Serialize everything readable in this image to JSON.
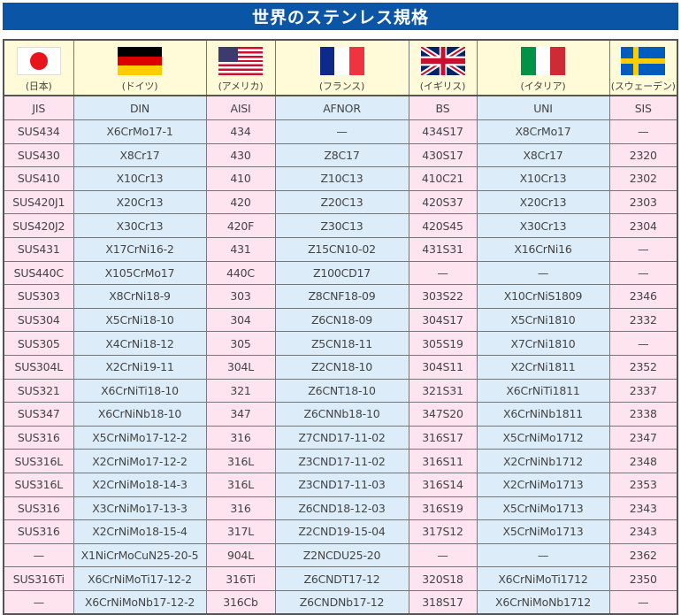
{
  "title": "世界のステンレス規格",
  "columns": [
    {
      "country": "(日本)",
      "flag": "japan-flag",
      "code": "JIS"
    },
    {
      "country": "(ドイツ)",
      "flag": "germany-flag",
      "code": "DIN"
    },
    {
      "country": "(アメリカ)",
      "flag": "usa-flag",
      "code": "AISI"
    },
    {
      "country": "(フランス)",
      "flag": "france-flag",
      "code": "AFNOR"
    },
    {
      "country": "(イギリス)",
      "flag": "uk-flag",
      "code": "BS"
    },
    {
      "country": "(イタリア)",
      "flag": "italy-flag",
      "code": "UNI"
    },
    {
      "country": "(スウェーデン)",
      "flag": "sweden-flag",
      "code": "SIS"
    }
  ],
  "rows": [
    [
      "SUS434",
      "X6CrMo17-1",
      "434",
      "—",
      "434S17",
      "X8CrMo17",
      "—"
    ],
    [
      "SUS430",
      "X8Cr17",
      "430",
      "Z8C17",
      "430S17",
      "X8Cr17",
      "2320"
    ],
    [
      "SUS410",
      "X10Cr13",
      "410",
      "Z10C13",
      "410C21",
      "X10Cr13",
      "2302"
    ],
    [
      "SUS420J1",
      "X20Cr13",
      "420",
      "Z20C13",
      "420S37",
      "X20Cr13",
      "2303"
    ],
    [
      "SUS420J2",
      "X30Cr13",
      "420F",
      "Z30C13",
      "420S45",
      "X30Cr13",
      "2304"
    ],
    [
      "SUS431",
      "X17CrNi16-2",
      "431",
      "Z15CN10-02",
      "431S31",
      "X16CrNi16",
      "—"
    ],
    [
      "SUS440C",
      "X105CrMo17",
      "440C",
      "Z100CD17",
      "—",
      "—",
      "—"
    ],
    [
      "SUS303",
      "X8CrNi18-9",
      "303",
      "Z8CNF18-09",
      "303S22",
      "X10CrNiS1809",
      "2346"
    ],
    [
      "SUS304",
      "X5CrNi18-10",
      "304",
      "Z6CN18-09",
      "304S17",
      "X5CrNi1810",
      "2332"
    ],
    [
      "SUS305",
      "X4CrNi18-12",
      "305",
      "Z5CN18-11",
      "305S19",
      "X7CrNi1810",
      "—"
    ],
    [
      "SUS304L",
      "X2CrNi19-11",
      "304L",
      "Z2CN18-10",
      "304S11",
      "X2CrNi1811",
      "2352"
    ],
    [
      "SUS321",
      "X6CrNiTi18-10",
      "321",
      "Z6CNT18-10",
      "321S31",
      "X6CrNiTi1811",
      "2337"
    ],
    [
      "SUS347",
      "X6CrNiNb18-10",
      "347",
      "Z6CNNb18-10",
      "347S20",
      "X6CrNiNb1811",
      "2338"
    ],
    [
      "SUS316",
      "X5CrNiMo17-12-2",
      "316",
      "Z7CND17-11-02",
      "316S17",
      "X5CrNiMo1712",
      "2347"
    ],
    [
      "SUS316L",
      "X2CrNiMo17-12-2",
      "316L",
      "Z3CND17-11-02",
      "316S11",
      "X2CrNiNb1712",
      "2348"
    ],
    [
      "SUS316L",
      "X2CrNiMo18-14-3",
      "316L",
      "Z3CND17-11-03",
      "316S14",
      "X2CrNiMo1713",
      "2353"
    ],
    [
      "SUS316",
      "X3CrNiMo17-13-3",
      "316",
      "Z6CND18-12-03",
      "316S19",
      "X5CrNiMo1713",
      "2343"
    ],
    [
      "SUS316",
      "X2CrNiMo18-15-4",
      "317L",
      "Z2CND19-15-04",
      "317S12",
      "X5CrNiMo1713",
      "2343"
    ],
    [
      "—",
      "X1NiCrMoCuN25-20-5",
      "904L",
      "Z2NCDU25-20",
      "—",
      "—",
      "2362"
    ],
    [
      "SUS316Ti",
      "X6CrNiMoTi17-12-2",
      "316Ti",
      "Z6CNDT17-12",
      "320S18",
      "X6CrNiMoTi1712",
      "2350"
    ],
    [
      "—",
      "X6CrNiMoNb17-12-2",
      "316Cb",
      "Z6CNDNb17-12",
      "318S17",
      "X6CrNiMoNb1712",
      "—"
    ]
  ],
  "colors": {
    "title_bg": "#0b55a6",
    "pink": "#fde4ee",
    "blue": "#dcedf9",
    "header": "#fffbd9"
  }
}
